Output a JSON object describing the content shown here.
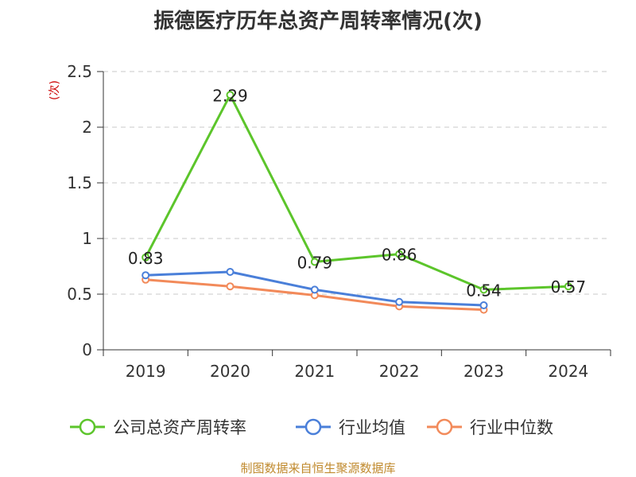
{
  "title": "振德医疗历年总资产周转率情况(次)",
  "footer": "制图数据来自恒生聚源数据库",
  "chart_data": {
    "type": "line",
    "title": "振德医疗历年总资产周转率情况(次)",
    "ylabel": "(次)",
    "xlabel": "",
    "categories": [
      "2019",
      "2020",
      "2021",
      "2022",
      "2023",
      "2024"
    ],
    "ylim": [
      0,
      2.5
    ],
    "yticks": [
      0,
      0.5,
      1,
      1.5,
      2,
      2.5
    ],
    "ytick_labels": [
      "0",
      "0.5",
      "1",
      "1.5",
      "2",
      "2.5"
    ],
    "grid": true,
    "legend_position": "bottom",
    "series": [
      {
        "name": "公司总资产周转率",
        "values": [
          0.83,
          2.29,
          0.79,
          0.86,
          0.54,
          0.57
        ],
        "labels": [
          "0.83",
          "2.29",
          "0.79",
          "0.86",
          "0.54",
          "0.57"
        ],
        "color": "#5cc52b"
      },
      {
        "name": "行业均值",
        "values": [
          0.67,
          0.7,
          0.54,
          0.43,
          0.4,
          null
        ],
        "color": "#4a7fd9"
      },
      {
        "name": "行业中位数",
        "values": [
          0.63,
          0.57,
          0.49,
          0.39,
          0.36,
          null
        ],
        "color": "#f28a5a"
      }
    ]
  }
}
